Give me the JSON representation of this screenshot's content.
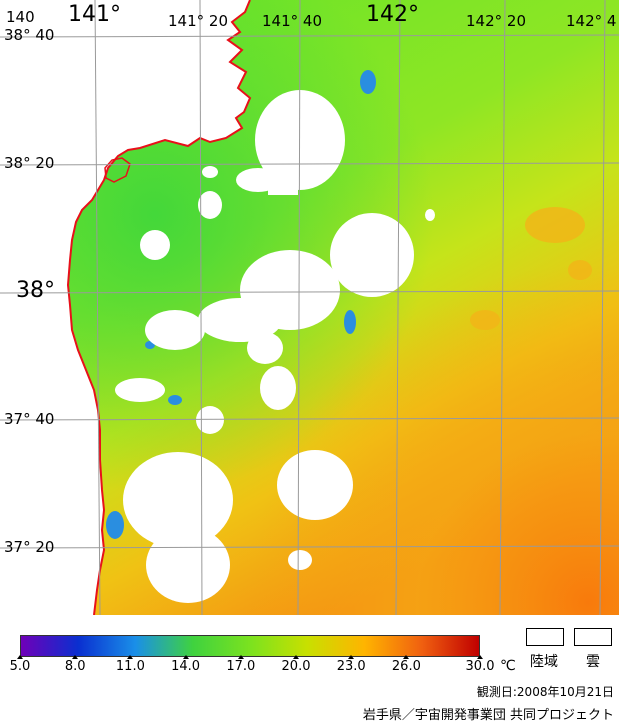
{
  "map": {
    "lon_labels": [
      "140",
      "141°",
      "141° 20",
      "141° 40",
      "142°",
      "142° 20",
      "142° 4"
    ],
    "lat_labels": [
      "38° 40",
      "38° 20",
      "38°",
      "37° 40",
      "37° 20"
    ]
  },
  "legend": {
    "ticks": [
      "5.0",
      "8.0",
      "11.0",
      "14.0",
      "17.0",
      "20.0",
      "23.0",
      "26.0",
      "30.0"
    ],
    "unit": "℃",
    "gradient_colors": [
      "#6f00b8",
      "#0a2fd0",
      "#1a8fe8",
      "#3fd23f",
      "#7be21f",
      "#c8e000",
      "#ffb400",
      "#f06010",
      "#c00000"
    ],
    "land_label": "陸域",
    "cloud_label": "雲"
  },
  "observation_date": "観測日:2008年10月21日",
  "credit": "岩手県／宇宙開発事業団 共同プロジェクト"
}
